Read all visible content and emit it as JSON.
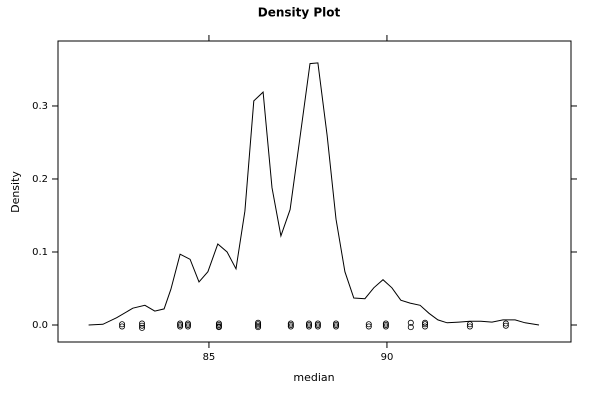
{
  "chart_data": {
    "type": "line",
    "title": "Density Plot",
    "xlabel": "median",
    "ylabel": "Density",
    "x": [
      81.62,
      82.02,
      82.41,
      82.86,
      83.2,
      83.48,
      83.74,
      83.93,
      84.19,
      84.47,
      84.72,
      84.97,
      85.25,
      85.51,
      85.76,
      86.01,
      86.26,
      86.52,
      86.77,
      87.02,
      87.28,
      87.53,
      87.84,
      88.06,
      88.32,
      88.57,
      88.82,
      89.07,
      89.38,
      89.63,
      89.89,
      90.14,
      90.39,
      90.65,
      90.93,
      91.18,
      91.43,
      91.69,
      92.02,
      92.33,
      92.64,
      92.95,
      93.26,
      93.6,
      93.88,
      94.27
    ],
    "values": [
      0,
      0.001,
      0.01,
      0.023,
      0.027,
      0.019,
      0.022,
      0.049,
      0.097,
      0.09,
      0.059,
      0.073,
      0.111,
      0.1,
      0.077,
      0.156,
      0.307,
      0.319,
      0.188,
      0.122,
      0.158,
      0.247,
      0.358,
      0.359,
      0.26,
      0.145,
      0.073,
      0.037,
      0.036,
      0.051,
      0.062,
      0.051,
      0.034,
      0.03,
      0.027,
      0.016,
      0.007,
      0.003,
      0.004,
      0.005,
      0.005,
      0.004,
      0.007,
      0.007,
      0.003,
      0
    ],
    "color": "#000000",
    "rug": {
      "x": [
        82.56,
        82.56,
        83.12,
        83.12,
        83.12,
        84.19,
        84.19,
        84.19,
        84.41,
        84.41,
        84.41,
        85.28,
        85.28,
        85.28,
        85.28,
        86.38,
        86.38,
        86.38,
        86.38,
        87.3,
        87.3,
        87.3,
        87.81,
        87.81,
        87.81,
        88.06,
        88.06,
        88.06,
        88.57,
        88.57,
        88.57,
        89.49,
        89.49,
        89.97,
        89.97,
        89.97,
        90.67,
        90.67,
        91.07,
        91.07,
        91.07,
        92.33,
        92.33,
        93.34,
        93.34
      ],
      "values": [
        0.001,
        -0.002,
        0.002,
        -0.001,
        -0.004,
        0.002,
        0,
        -0.002,
        0.002,
        0,
        -0.002,
        0.002,
        0,
        -0.002,
        -0.003,
        0.003,
        0.001,
        -0.001,
        -0.003,
        0.002,
        0,
        -0.002,
        0.002,
        0,
        -0.002,
        0.002,
        0,
        -0.002,
        0.002,
        0,
        -0.002,
        0.001,
        -0.002,
        0.002,
        0,
        -0.002,
        0.003,
        -0.003,
        0.003,
        0.001,
        -0.002,
        0.001,
        -0.002,
        0.002,
        -0.001
      ]
    },
    "xlim": [
      80.76,
      95.17
    ],
    "ylim": [
      -0.0233,
      0.389
    ],
    "xticks": [
      85,
      90
    ],
    "yticks": [
      {
        "value": 0,
        "label": "0.0"
      },
      0.1,
      0.2,
      0.3
    ]
  }
}
